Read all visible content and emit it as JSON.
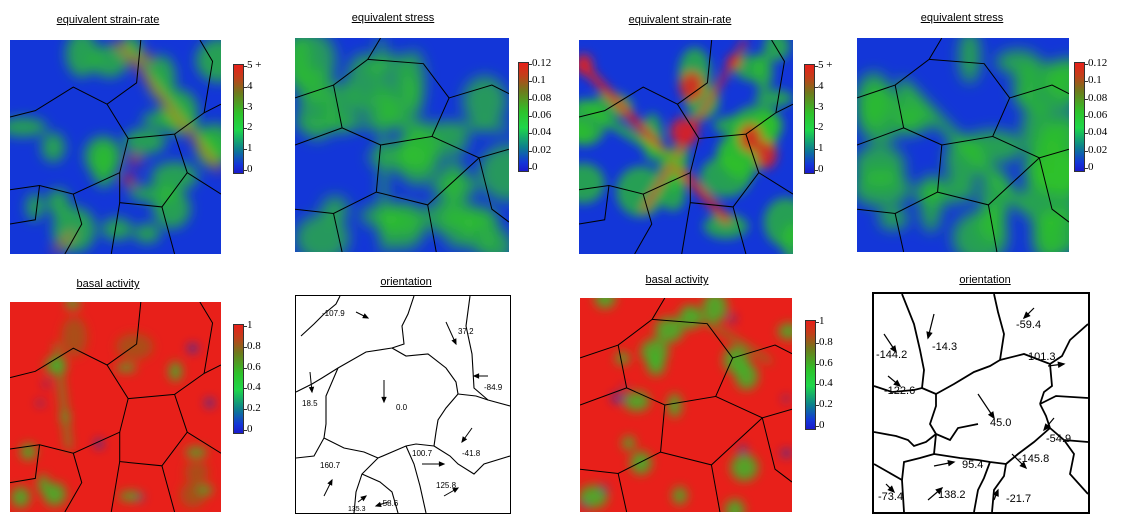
{
  "panels": {
    "p1": {
      "title": "equivalent strain-rate"
    },
    "p2": {
      "title": "equivalent stress"
    },
    "p3": {
      "title": "equivalent strain-rate"
    },
    "p4": {
      "title": "equivalent stress"
    },
    "p5": {
      "title": "basal activity"
    },
    "p6": {
      "title": "orientation"
    },
    "p7": {
      "title": "basal activity"
    },
    "p8": {
      "title": "orientation"
    }
  },
  "colorbars": {
    "strain_rate": {
      "ticks": [
        "5 +",
        "4",
        "3",
        "2",
        "1",
        "0"
      ]
    },
    "stress": {
      "ticks": [
        "0.12",
        "0.1",
        "0.08",
        "0.06",
        "0.04",
        "0.02",
        "0"
      ]
    },
    "basal": {
      "ticks": [
        "1",
        "0.8",
        "0.6",
        "0.4",
        "0.2",
        "0"
      ]
    }
  },
  "orientation_left": {
    "labels": [
      "-107.9",
      "37.2",
      "18.5",
      "0.0",
      "-84.9",
      "100.7",
      "-41.8",
      "160.7",
      "125.8",
      "-58.6",
      "135.3"
    ]
  },
  "orientation_right": {
    "labels": [
      "-59.4",
      "-14.3",
      "-144.2",
      "101.3",
      "-122.6",
      "45.0",
      "-54.9",
      "95.4",
      "-145.8",
      "-73.4",
      "138.2",
      "-21.7"
    ]
  },
  "colors": {
    "high": "#e8201a",
    "mid": "#2ec22a",
    "low": "#1336d8"
  }
}
